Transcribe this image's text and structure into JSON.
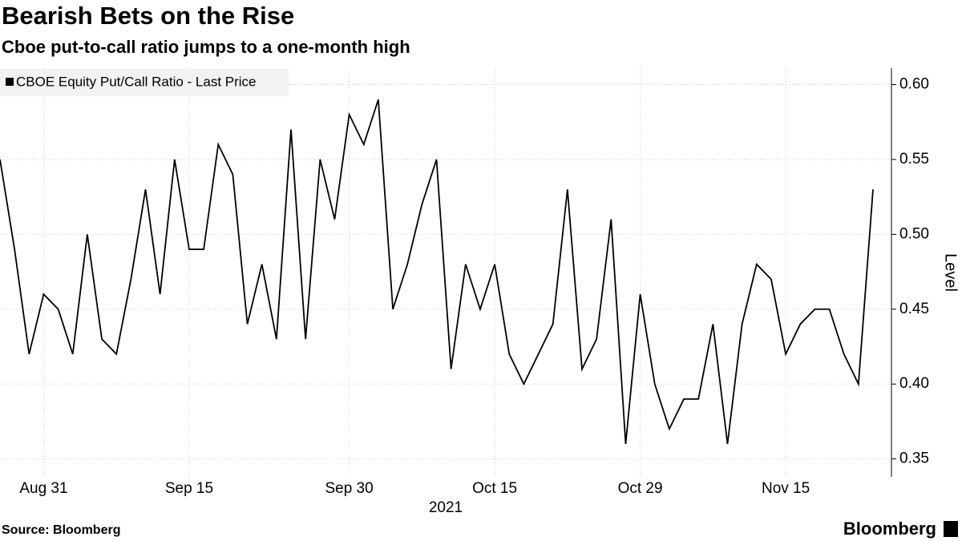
{
  "chart_data": {
    "type": "line",
    "title": "Bearish Bets on the Rise",
    "subtitle": "Cboe put-to-call ratio jumps to a one-month high",
    "y_label": "Level",
    "x_label": "2021",
    "source": "Source: Bloomberg",
    "brand": "Bloomberg",
    "categories": [
      null,
      null,
      null,
      "Aug 31",
      null,
      null,
      null,
      null,
      null,
      null,
      null,
      null,
      null,
      "Sep 15",
      null,
      null,
      null,
      null,
      null,
      null,
      null,
      null,
      null,
      null,
      "Sep 30",
      null,
      null,
      null,
      null,
      null,
      null,
      null,
      null,
      null,
      "Oct 15",
      null,
      null,
      null,
      null,
      null,
      null,
      null,
      null,
      null,
      "Oct 29",
      null,
      null,
      null,
      null,
      null,
      null,
      null,
      null,
      null,
      "Nov 15",
      null,
      null,
      null,
      null,
      null,
      null
    ],
    "series": [
      {
        "name": "CBOE Equity Put/Call Ratio - Last Price",
        "color": "#000000",
        "values": [
          0.55,
          0.49,
          0.42,
          0.46,
          0.45,
          0.42,
          0.5,
          0.43,
          0.42,
          0.47,
          0.53,
          0.46,
          0.55,
          0.49,
          0.49,
          0.56,
          0.54,
          0.44,
          0.48,
          0.43,
          0.57,
          0.43,
          0.55,
          0.51,
          0.58,
          0.56,
          0.59,
          0.45,
          0.48,
          0.52,
          0.55,
          0.41,
          0.48,
          0.45,
          0.48,
          0.42,
          0.4,
          0.42,
          0.44,
          0.53,
          0.41,
          0.43,
          0.51,
          0.36,
          0.46,
          0.4,
          0.37,
          0.39,
          0.39,
          0.44,
          0.36,
          0.44,
          0.48,
          0.47,
          0.42,
          0.44,
          0.45,
          0.45,
          0.42,
          0.4,
          0.53
        ]
      }
    ],
    "ylim": [
      0.338,
      0.611
    ],
    "yticks": [
      {
        "value": 0.6,
        "label": "0.60"
      },
      0.55,
      {
        "value": 0.5,
        "label": "0.50"
      },
      0.45,
      {
        "value": 0.4,
        "label": "0.40"
      },
      0.35
    ],
    "grid": true,
    "legend": "top-left"
  }
}
